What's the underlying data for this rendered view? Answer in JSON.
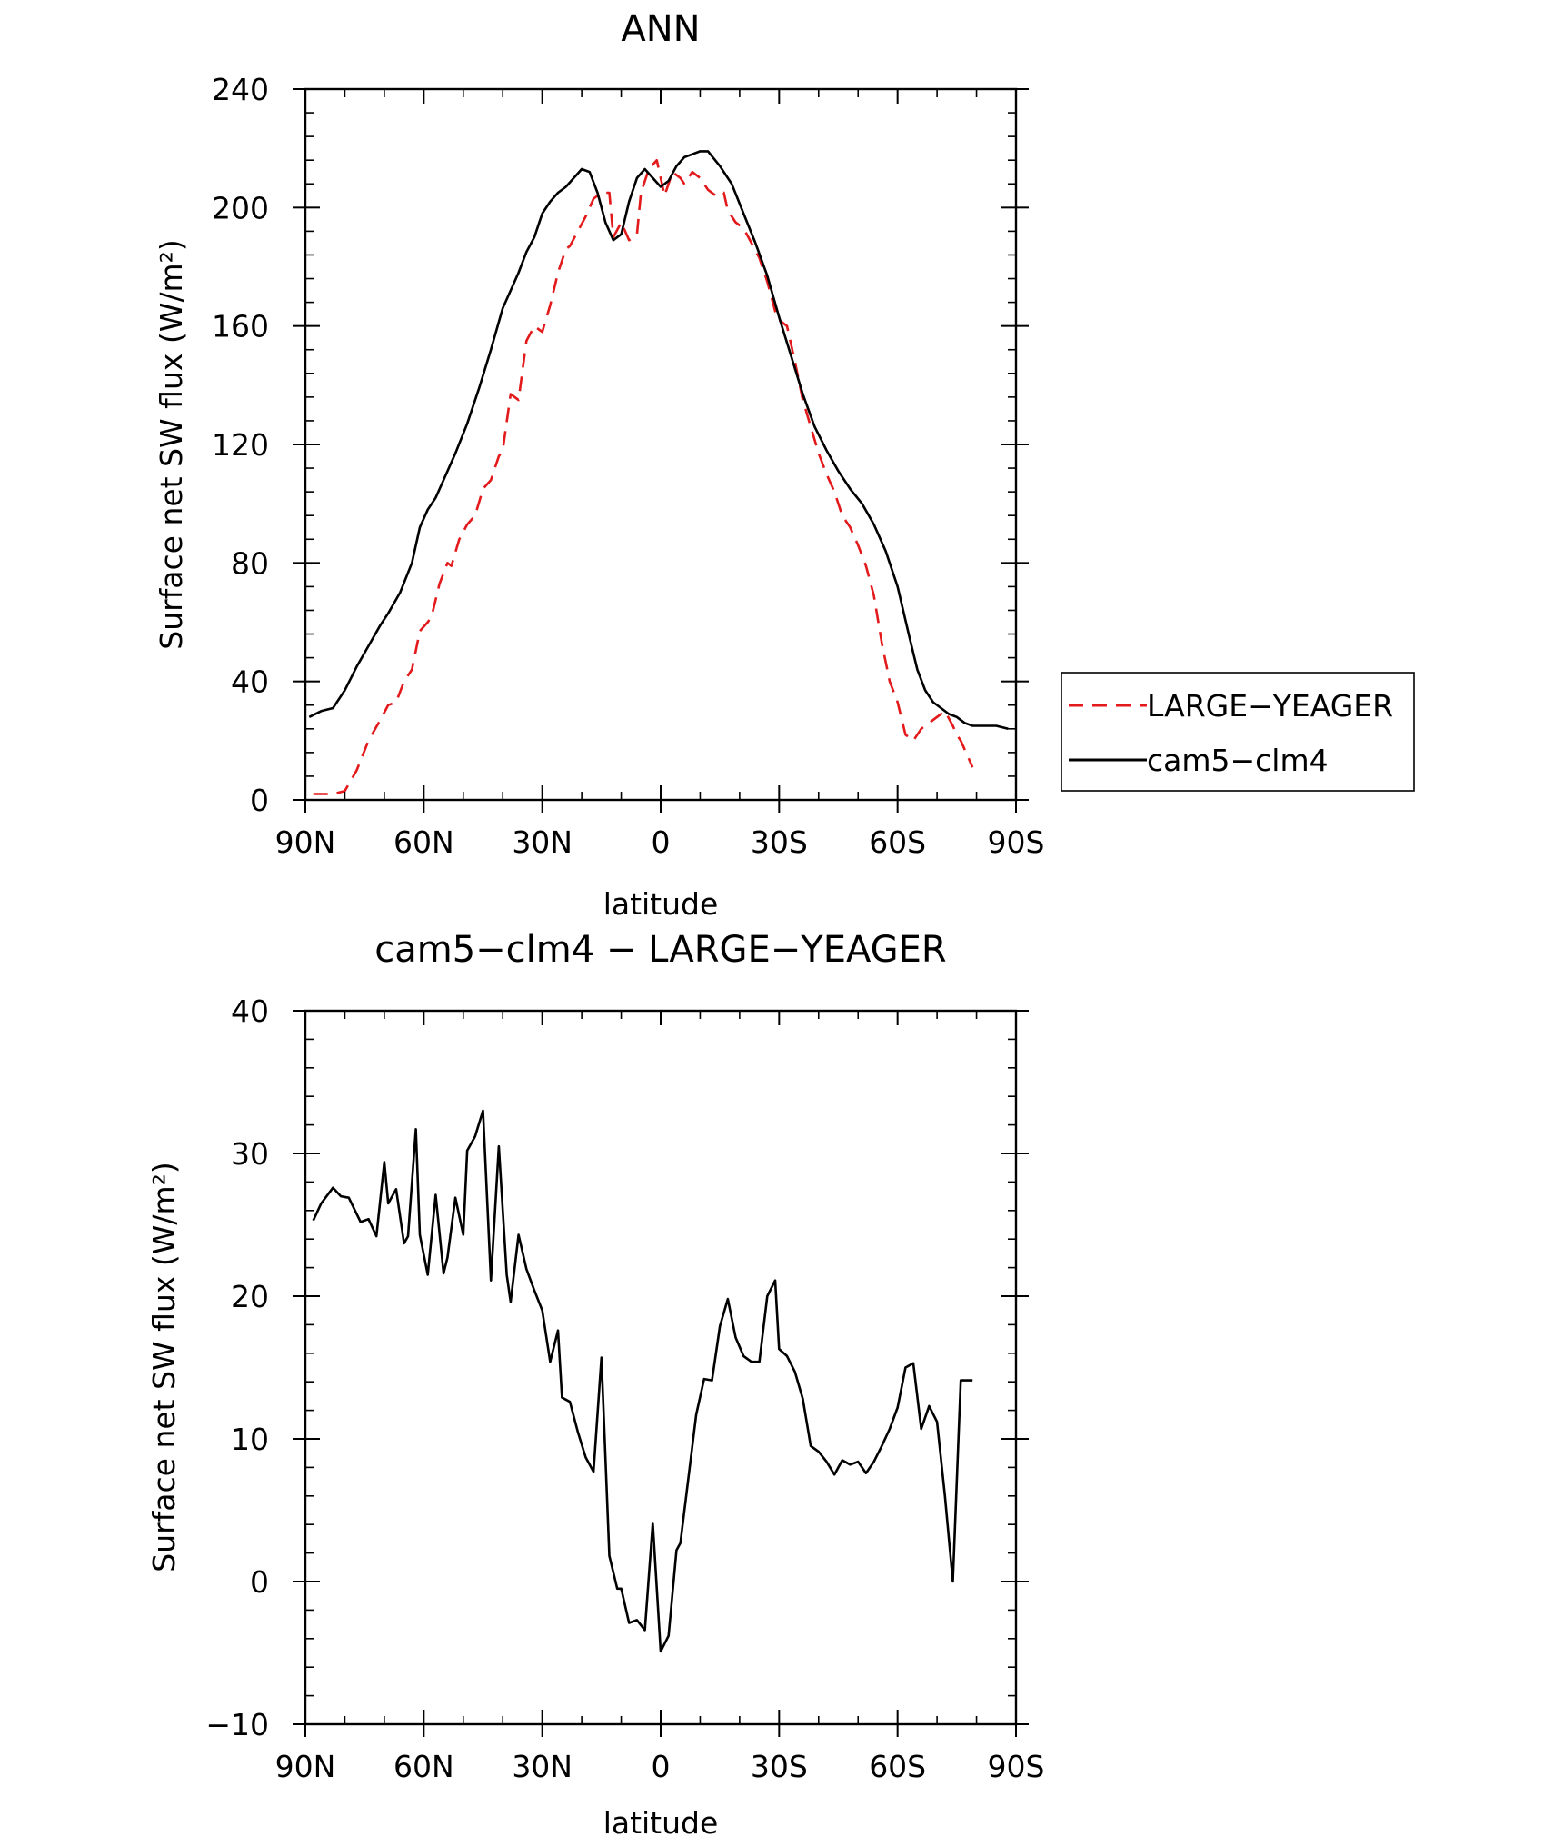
{
  "chart_data": [
    {
      "type": "line",
      "title": "ANN",
      "xlabel": "latitude",
      "ylabel": "Surface net SW flux (W/m²)",
      "xlim": [
        90,
        -90
      ],
      "ylim": [
        0,
        240
      ],
      "xticks": [
        90,
        60,
        30,
        0,
        -30,
        -60,
        -90
      ],
      "xtick_labels": [
        "90N",
        "60N",
        "30N",
        "0",
        "30S",
        "60S",
        "90S"
      ],
      "yticks": [
        0,
        40,
        80,
        120,
        160,
        200,
        240
      ],
      "ytick_labels": [
        "0",
        "40",
        "80",
        "120",
        "160",
        "200",
        "240"
      ],
      "legend": {
        "placement": "right",
        "entries": [
          "LARGE−YEAGER",
          "cam5−clm4"
        ]
      },
      "series": [
        {
          "name": "LARGE−YEAGER",
          "color": "#e31a1c",
          "dash": "dashed",
          "x": [
            88,
            83,
            80,
            77,
            74,
            71,
            69,
            67,
            65,
            63,
            61,
            59,
            58,
            56,
            54,
            53,
            51,
            49,
            47,
            45,
            43,
            41,
            40,
            38,
            36,
            34,
            32,
            30,
            28,
            26,
            24,
            23,
            21,
            19,
            17,
            15,
            13,
            12,
            10,
            8,
            6,
            5,
            3,
            1,
            -1,
            -3,
            -5,
            -6,
            -8,
            -10,
            -12,
            -14,
            -16,
            -17,
            -19,
            -21,
            -23,
            -25,
            -27,
            -29,
            -30,
            -32,
            -34,
            -36,
            -38,
            -40,
            -42,
            -44,
            -46,
            -48,
            -50,
            -52,
            -54,
            -56,
            -58,
            -60,
            -62,
            -64,
            -66,
            -68,
            -70,
            -72,
            -74,
            -75,
            -76,
            -78,
            -79
          ],
          "y": [
            2,
            2,
            3,
            10,
            20,
            27,
            32,
            33,
            40,
            44,
            57,
            60,
            62,
            73,
            80,
            79,
            88,
            93,
            96,
            105,
            108,
            116,
            118,
            137,
            135,
            155,
            160,
            158,
            167,
            178,
            186,
            187,
            192,
            197,
            203,
            205,
            205,
            190,
            195,
            189,
            191,
            205,
            213,
            216,
            204,
            212,
            210,
            208,
            212,
            210,
            206,
            204,
            205,
            199,
            195,
            193,
            188,
            183,
            175,
            165,
            162,
            160,
            148,
            135,
            126,
            117,
            110,
            104,
            96,
            92,
            86,
            79,
            69,
            53,
            40,
            33,
            22,
            20,
            24,
            26,
            28,
            30,
            25,
            22,
            20,
            14,
            11
          ]
        },
        {
          "name": "cam5−clm4",
          "color": "#000000",
          "dash": "solid",
          "x": [
            89,
            86,
            83,
            80,
            77,
            74,
            71,
            69,
            66,
            63,
            61,
            59,
            57,
            55,
            52,
            49,
            46,
            43,
            40,
            38,
            36,
            34,
            32,
            30,
            28,
            26,
            24,
            22,
            20,
            18,
            16,
            14,
            12,
            10,
            8,
            6,
            4,
            2,
            0,
            -2,
            -4,
            -6,
            -8,
            -10,
            -12,
            -15,
            -18,
            -21,
            -24,
            -27,
            -30,
            -33,
            -36,
            -39,
            -42,
            -45,
            -48,
            -51,
            -54,
            -57,
            -60,
            -63,
            -65,
            -67,
            -69,
            -71,
            -73,
            -75,
            -77,
            -79,
            -82,
            -85,
            -88
          ],
          "y": [
            28,
            30,
            31,
            37,
            45,
            52,
            59,
            63,
            70,
            80,
            92,
            98,
            102,
            108,
            117,
            127,
            139,
            152,
            166,
            172,
            178,
            185,
            190,
            198,
            202,
            205,
            207,
            210,
            213,
            212,
            205,
            195,
            189,
            191,
            202,
            210,
            213,
            210,
            207,
            209,
            214,
            217,
            218,
            219,
            219,
            214,
            208,
            198,
            188,
            177,
            163,
            150,
            137,
            126,
            118,
            111,
            105,
            100,
            93,
            84,
            72,
            55,
            44,
            37,
            33,
            31,
            29,
            28,
            26,
            25,
            25,
            25,
            24
          ]
        }
      ]
    },
    {
      "type": "line",
      "title": "cam5−clm4 − LARGE−YEAGER",
      "xlabel": "latitude",
      "ylabel": "Surface net SW flux (W/m²)",
      "xlim": [
        90,
        -90
      ],
      "ylim": [
        -10,
        40
      ],
      "xticks": [
        90,
        60,
        30,
        0,
        -30,
        -60,
        -90
      ],
      "xtick_labels": [
        "90N",
        "60N",
        "30N",
        "0",
        "30S",
        "60S",
        "90S"
      ],
      "yticks": [
        -10,
        0,
        10,
        20,
        30,
        40
      ],
      "ytick_labels": [
        "−10",
        "0",
        "10",
        "20",
        "30",
        "40"
      ],
      "series": [
        {
          "color": "#000000",
          "dash": "solid",
          "x": [
            88,
            86,
            83,
            81,
            79,
            76,
            74,
            72,
            70,
            69,
            67,
            65,
            64,
            62,
            61,
            59,
            57,
            55,
            54,
            52,
            50,
            49,
            47,
            45,
            43,
            41,
            39,
            38,
            36,
            34,
            32,
            30,
            28,
            26,
            25,
            23,
            21,
            19,
            17,
            15,
            13,
            11,
            10,
            8,
            6,
            4,
            2,
            0,
            -2,
            -4,
            -5,
            -7,
            -9,
            -11,
            -13,
            -15,
            -17,
            -19,
            -21,
            -23,
            -25,
            -27,
            -29,
            -30,
            -32,
            -34,
            -36,
            -38,
            -40,
            -42,
            -44,
            -46,
            -48,
            -50,
            -52,
            -54,
            -56,
            -58,
            -60,
            -62,
            -64,
            -66,
            -68,
            -70,
            -72,
            -74,
            -76,
            -78,
            -79
          ],
          "y": [
            25.3,
            26.5,
            27.6,
            27.0,
            26.9,
            25.2,
            25.4,
            24.2,
            29.4,
            26.5,
            27.5,
            23.7,
            24.2,
            31.7,
            24.3,
            21.5,
            27.1,
            21.6,
            22.7,
            26.9,
            24.3,
            30.2,
            31.2,
            33.0,
            21.1,
            30.5,
            21.5,
            19.6,
            24.3,
            21.9,
            20.4,
            19.0,
            15.4,
            17.6,
            12.9,
            12.6,
            10.5,
            8.7,
            7.7,
            15.7,
            1.8,
            -0.5,
            -0.5,
            -2.9,
            -2.7,
            -3.4,
            4.1,
            -4.9,
            -3.8,
            2.2,
            2.7,
            7.2,
            11.7,
            14.2,
            14.1,
            17.9,
            19.8,
            17.1,
            15.8,
            15.4,
            15.4,
            20.0,
            21.1,
            16.3,
            15.8,
            14.7,
            12.8,
            9.5,
            9.1,
            8.4,
            7.5,
            8.5,
            8.2,
            8.4,
            7.6,
            8.4,
            9.5,
            10.7,
            12.2,
            15.0,
            15.3,
            10.7,
            12.3,
            11.2,
            6.0,
            0.0,
            14.1,
            14.1,
            14.1
          ]
        }
      ]
    }
  ]
}
